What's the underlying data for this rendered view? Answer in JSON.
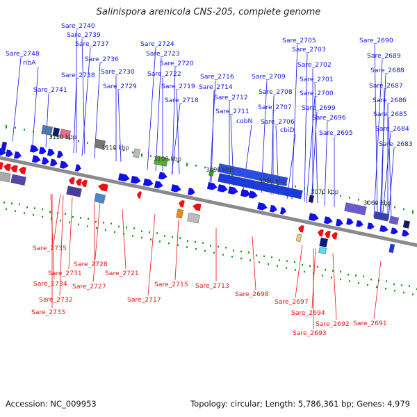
{
  "title": "Salinispora arenicola CNS-205, complete genome",
  "footer": {
    "accession": "Accession: NC_009953",
    "info": "Topology: circular; Length: 5,786,361 bp; Genes: 4,979"
  },
  "colors": {
    "forward": "#1010ee",
    "reverse": "#ee1010",
    "backbone": "#888888",
    "tick": "#119911"
  },
  "ruler": [
    "3120 kbp",
    "3110 kbp",
    "3100 kbp",
    "3090 kbp",
    "3080 kbp",
    "3070 kbp",
    "3060 kbp"
  ],
  "top_labels": [
    "Sare_2748",
    "ribA",
    "Sare_2741",
    "Sare_2740",
    "Sare_2739",
    "Sare_2737",
    "Sare_2736",
    "Sare_2738",
    "Sare_2730",
    "Sare_2729",
    "Sare_2724",
    "Sare_2723",
    "Sare_2720",
    "Sare_2722",
    "Sare_2719",
    "Sare_2718",
    "Sare_2716",
    "Sare_2714",
    "Sare_2712",
    "Sare_2711",
    "cobN",
    "Sare_2709",
    "Sare_2708",
    "Sare_2707",
    "Sare_2706",
    "cbiD",
    "Sare_2705",
    "Sare_2703",
    "Sare_2702",
    "Sare_2701",
    "Sare_2700",
    "Sare_2699",
    "Sare_2696",
    "Sare_2695",
    "Sare_2690",
    "Sare_2689",
    "Sare_2688",
    "Sare_2687",
    "Sare_2686",
    "Sare_2685",
    "Sare_2684",
    "Sare_2683"
  ],
  "bottom_labels": [
    "Sare_2735",
    "Sare_2731",
    "Sare_2728",
    "Sare_2734",
    "Sare_2727",
    "Sare_2732",
    "Sare_2733",
    "Sare_2721",
    "Sare_2717",
    "Sare_2715",
    "Sare_2713",
    "Sare_2698",
    "Sare_2697",
    "Sare_2694",
    "Sare_2693",
    "Sare_2692",
    "Sare_2691"
  ]
}
